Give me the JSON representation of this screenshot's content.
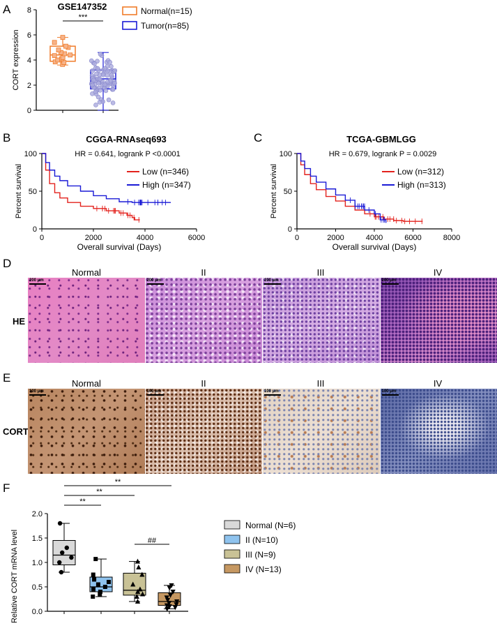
{
  "panel_letters": [
    "A",
    "B",
    "C",
    "D",
    "E",
    "F"
  ],
  "chart_data": [
    {
      "panel": "A",
      "type": "box",
      "title": "GSE147352",
      "ylabel": "CORT expression",
      "ylim": [
        0,
        8
      ],
      "yticks": [
        "0",
        "2",
        "4",
        "6",
        "8"
      ],
      "significance": "***",
      "series": [
        {
          "name": "Normal(n=15)",
          "color": "#f07c2a",
          "q1": 3.9,
          "median": 4.4,
          "q3": 5.1,
          "min": 3.6,
          "max": 5.8,
          "points": [
            3.65,
            3.8,
            3.85,
            4.0,
            4.1,
            4.2,
            4.35,
            4.4,
            4.5,
            4.6,
            4.8,
            5.0,
            5.1,
            5.4,
            5.8
          ]
        },
        {
          "name": "Tumor(n=85)",
          "color": "#1a1ad6",
          "q1": 1.7,
          "median": 2.5,
          "q3": 3.2,
          "min": 0.0,
          "max": 4.6
        }
      ]
    },
    {
      "panel": "B",
      "type": "line",
      "title": "CGGA-RNAseq693",
      "annotation": "HR = 0.641, logrank P <0.0001",
      "xlabel": "Overall survival (Days)",
      "ylabel": "Percent survival",
      "xlim": [
        0,
        6000
      ],
      "ylim": [
        0,
        100
      ],
      "xticks": [
        "0",
        "2000",
        "4000",
        "6000"
      ],
      "yticks": [
        "0",
        "50",
        "100"
      ],
      "series": [
        {
          "name": "Low (n=346)",
          "color": "#e3211c",
          "x": [
            0,
            150,
            300,
            500,
            700,
            1000,
            1500,
            2000,
            2500,
            3000,
            3300,
            3500,
            3600,
            3800
          ],
          "y": [
            100,
            78,
            60,
            48,
            41,
            35,
            30,
            27,
            24,
            21,
            18,
            15,
            12,
            12
          ]
        },
        {
          "name": "High (n=347)",
          "color": "#1a1ad6",
          "x": [
            0,
            150,
            300,
            500,
            700,
            1000,
            1500,
            2000,
            2500,
            3000,
            3500,
            4000,
            5000
          ],
          "y": [
            100,
            88,
            78,
            70,
            64,
            57,
            50,
            44,
            40,
            36,
            35,
            35,
            35
          ]
        }
      ]
    },
    {
      "panel": "C",
      "type": "line",
      "title": "TCGA-GBMLGG",
      "annotation": "HR = 0.679, logrank P = 0.0029",
      "xlabel": "Overall survival (Days)",
      "ylabel": "Percent survival",
      "xlim": [
        0,
        8000
      ],
      "ylim": [
        0,
        100
      ],
      "xticks": [
        "0",
        "2000",
        "4000",
        "6000",
        "8000"
      ],
      "yticks": [
        "0",
        "50",
        "100"
      ],
      "series": [
        {
          "name": "Low (n=312)",
          "color": "#e3211c",
          "x": [
            0,
            200,
            400,
            700,
            1000,
            1500,
            2000,
            2500,
            3000,
            3500,
            4000,
            4500,
            5000,
            5500,
            6500
          ],
          "y": [
            100,
            85,
            72,
            60,
            52,
            43,
            37,
            30,
            25,
            20,
            16,
            13,
            11,
            10,
            10
          ]
        },
        {
          "name": "High (n=313)",
          "color": "#1a1ad6",
          "x": [
            0,
            200,
            400,
            700,
            1000,
            1500,
            2000,
            2500,
            3000,
            3500,
            4000,
            4300,
            4600
          ],
          "y": [
            100,
            90,
            80,
            70,
            62,
            53,
            45,
            38,
            30,
            25,
            20,
            12,
            8
          ]
        }
      ]
    },
    {
      "panel": "F",
      "type": "box",
      "ylabel": "Relative CORT mRNA level",
      "ylim": [
        0,
        2.0
      ],
      "yticks": [
        "0.0",
        "0.5",
        "1.0",
        "1.5",
        "2.0"
      ],
      "significance": [
        "**",
        "**",
        "**",
        "##"
      ],
      "series": [
        {
          "name": "Normal (N=6)",
          "color": "#d9d9d9",
          "q1": 0.95,
          "median": 1.15,
          "q3": 1.45,
          "min": 0.8,
          "max": 1.8,
          "points": [
            0.8,
            1.0,
            1.1,
            1.2,
            1.3,
            1.8
          ]
        },
        {
          "name": "II (N=10)",
          "color": "#8fc3ee",
          "q1": 0.4,
          "median": 0.5,
          "q3": 0.7,
          "min": 0.3,
          "max": 1.07,
          "points": [
            0.3,
            0.35,
            0.4,
            0.45,
            0.5,
            0.55,
            0.6,
            0.65,
            0.75,
            1.07
          ]
        },
        {
          "name": "III (N=9)",
          "color": "#c9c296",
          "q1": 0.33,
          "median": 0.43,
          "q3": 0.78,
          "min": 0.2,
          "max": 1.02,
          "points": [
            0.2,
            0.3,
            0.35,
            0.4,
            0.45,
            0.55,
            0.75,
            0.9,
            1.02
          ]
        },
        {
          "name": "IV (N=13)",
          "color": "#c69862",
          "q1": 0.12,
          "median": 0.2,
          "q3": 0.38,
          "min": 0.05,
          "max": 0.53,
          "points": [
            0.05,
            0.08,
            0.1,
            0.12,
            0.14,
            0.17,
            0.2,
            0.23,
            0.28,
            0.33,
            0.4,
            0.48,
            0.53
          ]
        }
      ]
    }
  ],
  "micro": {
    "columns": [
      "Normal",
      "II",
      "III",
      "IV"
    ],
    "he_label": "HE",
    "cort_label": "CORT",
    "he_scale": "200 μm",
    "cort_scale": "100 μm"
  }
}
